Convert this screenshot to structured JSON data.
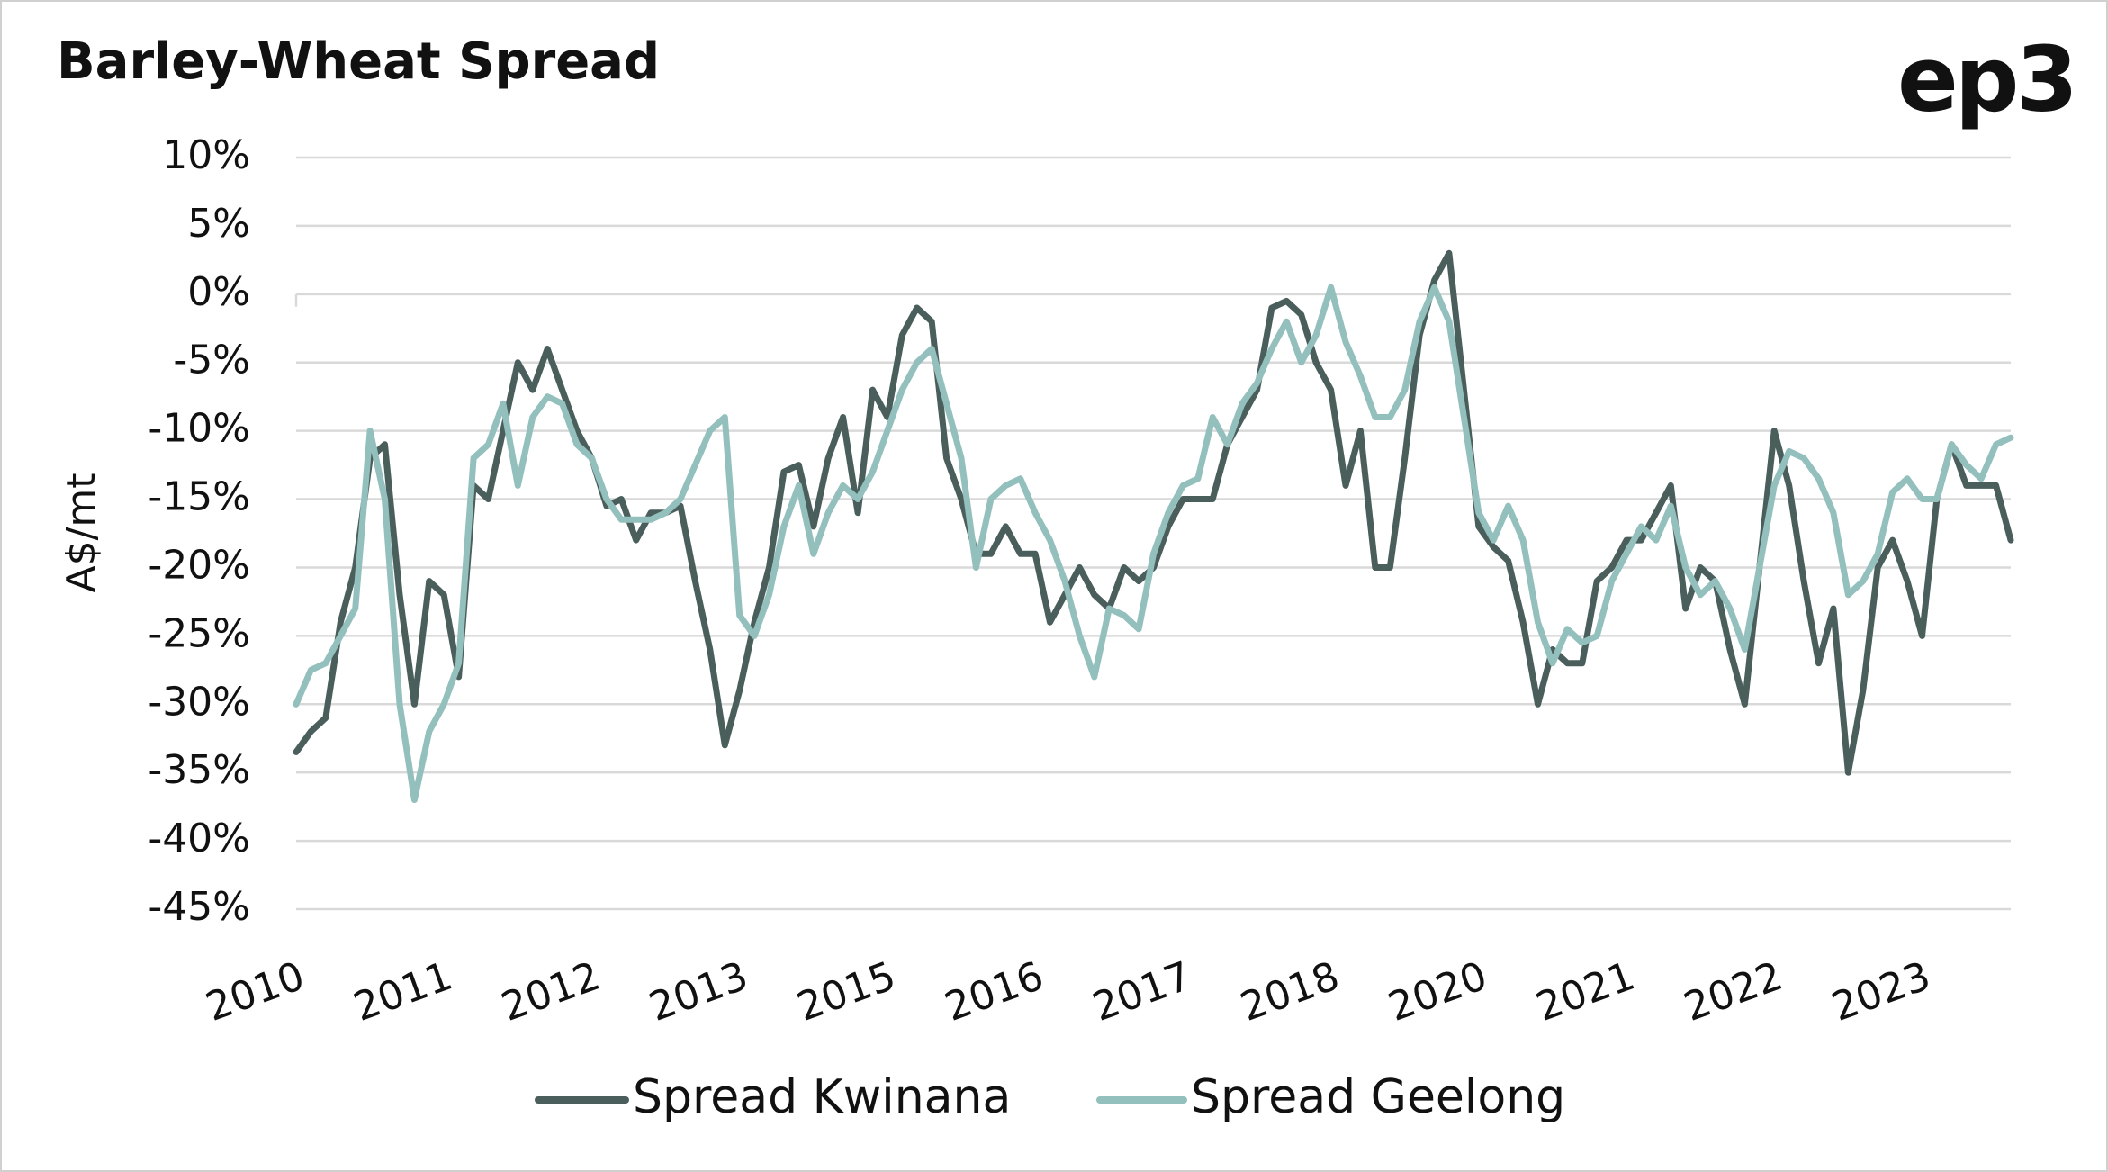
{
  "chart_data": {
    "type": "line",
    "title": "Barley-Wheat Spread",
    "logo": "ep3",
    "y_label": "A$/mt",
    "categories": [
      "2010",
      null,
      null,
      null,
      null,
      null,
      null,
      null,
      null,
      null,
      "2011",
      null,
      null,
      null,
      null,
      null,
      null,
      null,
      null,
      null,
      "2012",
      null,
      null,
      null,
      null,
      null,
      null,
      null,
      null,
      null,
      "2013",
      null,
      null,
      null,
      null,
      null,
      null,
      null,
      null,
      null,
      "2015",
      null,
      null,
      null,
      null,
      null,
      null,
      null,
      null,
      null,
      "2016",
      null,
      null,
      null,
      null,
      null,
      null,
      null,
      null,
      null,
      "2017",
      null,
      null,
      null,
      null,
      null,
      null,
      null,
      null,
      null,
      "2018",
      null,
      null,
      null,
      null,
      null,
      null,
      null,
      null,
      null,
      "2020",
      null,
      null,
      null,
      null,
      null,
      null,
      null,
      null,
      null,
      "2021",
      null,
      null,
      null,
      null,
      null,
      null,
      null,
      null,
      null,
      "2022",
      null,
      null,
      null,
      null,
      null,
      null,
      null,
      null,
      null,
      "2023",
      null,
      null,
      null,
      null,
      null,
      null
    ],
    "series": [
      {
        "name": "Spread Kwinana",
        "color": "#4a5e5c",
        "values": [
          -33.5,
          -32,
          -31,
          -24,
          -20,
          -12,
          -11,
          -22,
          -30,
          -21,
          -22,
          -28,
          -14,
          -15,
          -10,
          -5,
          -7,
          -4,
          -7,
          -10,
          -12,
          -15.5,
          -15,
          -18,
          -16,
          -16,
          -15.5,
          -21,
          -26,
          -33,
          -29,
          -24,
          -20,
          -13,
          -12.5,
          -17,
          -12,
          -9,
          -16,
          -7,
          -9,
          -3,
          -1,
          -2,
          -12,
          -15,
          -19,
          -19,
          -17,
          -19,
          -19,
          -24,
          -22,
          -20,
          -22,
          -23,
          -20,
          -21,
          -20,
          -17,
          -15,
          -15,
          -15,
          -11,
          -9,
          -7,
          -1,
          -0.5,
          -1.5,
          -5,
          -7,
          -14,
          -10,
          -20,
          -20,
          -12,
          -3,
          1,
          3,
          -7,
          -17,
          -18.5,
          -19.5,
          -24,
          -30,
          -26,
          -27,
          -27,
          -21,
          -20,
          -18,
          -18,
          -16,
          -14,
          -23,
          -20,
          -21,
          -26,
          -30,
          -20,
          -10,
          -14,
          -21,
          -27,
          -23,
          -35,
          -29,
          -20,
          -18,
          -21,
          -25,
          -15,
          -11,
          -14,
          -14,
          -14,
          -18
        ]
      },
      {
        "name": "Spread Geelong",
        "color": "#93c0bd",
        "values": [
          -30,
          -27.5,
          -27,
          -25,
          -23,
          -10,
          -15,
          -30,
          -37,
          -32,
          -30,
          -27,
          -12,
          -11,
          -8,
          -14,
          -9,
          -7.5,
          -8,
          -11,
          -12,
          -15,
          -16.5,
          -16.5,
          -16.5,
          -16,
          -15,
          -12.5,
          -10,
          -9,
          -23.5,
          -25,
          -22,
          -17,
          -14,
          -19,
          -16,
          -14,
          -15,
          -13,
          -10,
          -7,
          -5,
          -4,
          -8,
          -12,
          -20,
          -15,
          -14,
          -13.5,
          -16,
          -18,
          -21,
          -25,
          -28,
          -23,
          -23.5,
          -24.5,
          -19,
          -16,
          -14,
          -13.5,
          -9,
          -11,
          -8,
          -6.5,
          -4,
          -2,
          -5,
          -3,
          0.5,
          -3.5,
          -6,
          -9,
          -9,
          -7,
          -2,
          0.5,
          -2,
          -9,
          -16,
          -18,
          -15.5,
          -18,
          -24,
          -27,
          -24.5,
          -25.5,
          -25,
          -21,
          -19,
          -17,
          -18,
          -15.5,
          -20,
          -22,
          -21,
          -23,
          -26,
          -20,
          -14,
          -11.5,
          -12,
          -13.5,
          -16,
          -22,
          -21,
          -19,
          -14.5,
          -13.5,
          -15,
          -15,
          -11,
          -12.5,
          -13.5,
          -11,
          -10.5
        ]
      }
    ],
    "ylim": [
      -45,
      10
    ],
    "yticks": [
      {
        "value": 10,
        "label": "10%"
      },
      {
        "value": 5,
        "label": "5%"
      },
      {
        "value": 0,
        "label": "0%"
      },
      {
        "value": -5,
        "label": "-5%"
      },
      {
        "value": -10,
        "label": "-10%"
      },
      {
        "value": -15,
        "label": "-15%"
      },
      {
        "value": -20,
        "label": "-20%"
      },
      {
        "value": -25,
        "label": "-25%"
      },
      {
        "value": -30,
        "label": "-30%"
      },
      {
        "value": -35,
        "label": "-35%"
      },
      {
        "value": -40,
        "label": "-40%"
      },
      {
        "value": -45,
        "label": "-45%"
      }
    ],
    "grid": true,
    "legend": "bottom"
  }
}
